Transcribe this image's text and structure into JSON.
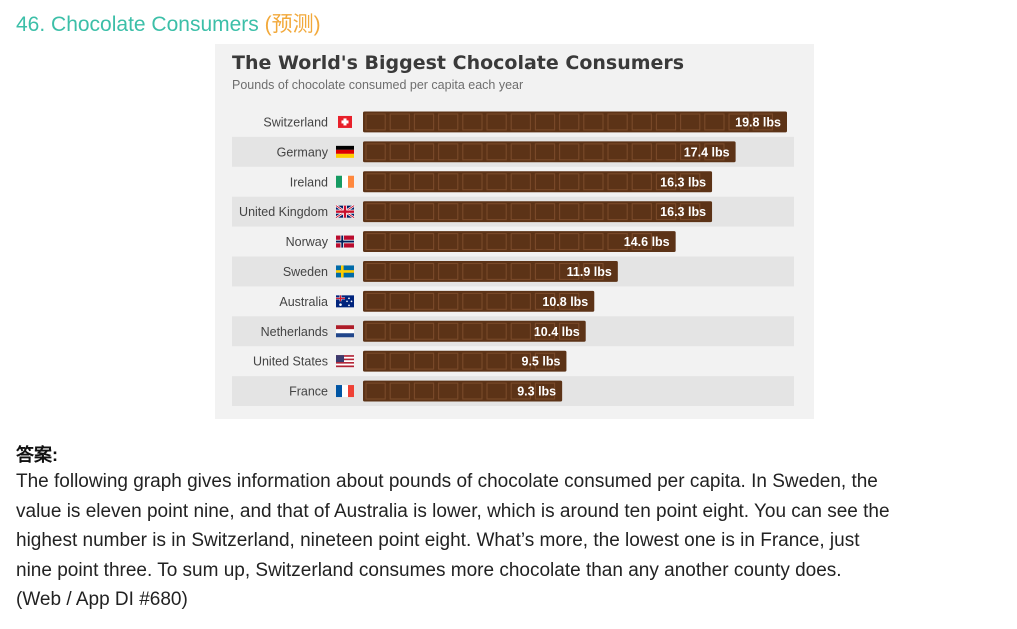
{
  "heading": {
    "text": "46. Chocolate Consumers",
    "tag": "(预测)"
  },
  "chart_data": {
    "type": "bar",
    "orientation": "horizontal",
    "title": "The World's Biggest Chocolate Consumers",
    "subtitle": "Pounds of chocolate consumed per capita each year",
    "categories": [
      "Switzerland",
      "Germany",
      "Ireland",
      "United Kingdom",
      "Norway",
      "Sweden",
      "Australia",
      "Netherlands",
      "United States",
      "France"
    ],
    "values": [
      19.8,
      17.4,
      16.3,
      16.3,
      14.6,
      11.9,
      10.8,
      10.4,
      9.5,
      9.3
    ],
    "value_labels": [
      "19.8 lbs",
      "17.4 lbs",
      "16.3 lbs",
      "16.3 lbs",
      "14.6 lbs",
      "11.9 lbs",
      "10.8 lbs",
      "10.4 lbs",
      "9.5 lbs",
      "9.3 lbs"
    ],
    "flags": [
      "flag-switzerland-icon",
      "flag-germany-icon",
      "flag-ireland-icon",
      "flag-united-kingdom-icon",
      "flag-norway-icon",
      "flag-sweden-icon",
      "flag-australia-icon",
      "flag-netherlands-icon",
      "flag-united-states-icon",
      "flag-france-icon"
    ],
    "unit": "lbs",
    "xlim": [
      0,
      19.8
    ],
    "bar_color": "#5c3317",
    "grid": false,
    "legend": "none"
  },
  "answer": {
    "label": "答案:",
    "lines": [
      "The following graph gives information about pounds of chocolate consumed per capita. In Sweden, the",
      "value is eleven point nine, and that of Australia is lower, which is around ten point eight. You can see the",
      "highest number is in Switzerland, nineteen point eight. What’s more, the lowest one is in France, just",
      "nine point three. To sum up, Switzerland consumes more chocolate than any another county does.",
      "(Web / App DI #680)"
    ]
  },
  "colors": {
    "heading": "#3cbfa8",
    "tag": "#f2a93b",
    "bar": "#5c3317",
    "bar_highlight": "#7a4a2a",
    "row_alt": "#e4e4e4",
    "card_bg": "#f2f2f2"
  }
}
